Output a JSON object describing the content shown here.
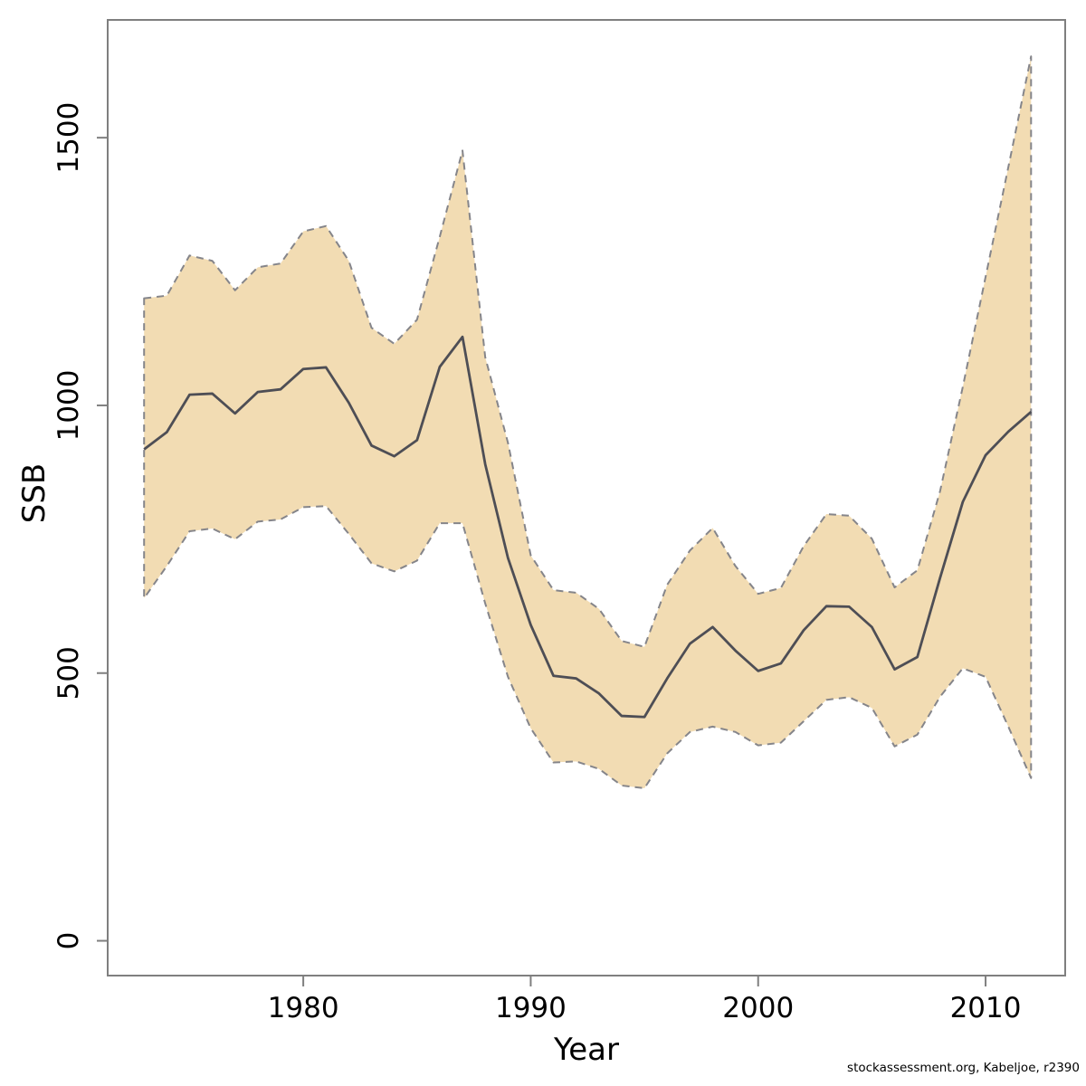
{
  "chart_data": {
    "type": "line",
    "title": "",
    "xlabel": "Year",
    "ylabel": "SSB",
    "legend": "none",
    "grid": false,
    "description": "SSB estimate with shaded confidence band (dashed borders)",
    "x": [
      1973,
      1974,
      1975,
      1976,
      1977,
      1978,
      1979,
      1980,
      1981,
      1982,
      1983,
      1984,
      1985,
      1986,
      1987,
      1988,
      1989,
      1990,
      1991,
      1992,
      1993,
      1994,
      1995,
      1996,
      1997,
      1998,
      1999,
      2000,
      2001,
      2002,
      2003,
      2004,
      2005,
      2006,
      2007,
      2008,
      2009,
      2010,
      2011,
      2012
    ],
    "series": [
      {
        "name": "SSB estimate",
        "style": "solid",
        "values": [
          918,
          950,
          1020,
          1022,
          985,
          1025,
          1030,
          1068,
          1071,
          1005,
          925,
          905,
          935,
          1072,
          1128,
          890,
          715,
          590,
          495,
          490,
          462,
          420,
          418,
          490,
          555,
          586,
          542,
          504,
          518,
          580,
          625,
          624,
          586,
          507,
          530,
          678,
          820,
          907,
          951,
          988
        ]
      },
      {
        "name": "lower confidence bound",
        "style": "dashed",
        "values": [
          640,
          700,
          765,
          770,
          750,
          783,
          787,
          810,
          812,
          760,
          705,
          690,
          710,
          780,
          780,
          630,
          493,
          397,
          333,
          335,
          321,
          290,
          285,
          350,
          390,
          400,
          390,
          365,
          370,
          410,
          450,
          455,
          435,
          363,
          385,
          456,
          509,
          493,
          400,
          304
        ]
      },
      {
        "name": "upper confidence bound",
        "style": "dashed",
        "values": [
          1200,
          1205,
          1280,
          1270,
          1215,
          1258,
          1265,
          1325,
          1335,
          1270,
          1145,
          1115,
          1160,
          1315,
          1476,
          1090,
          930,
          720,
          655,
          650,
          620,
          560,
          549,
          665,
          729,
          771,
          700,
          648,
          659,
          737,
          797,
          794,
          751,
          660,
          692,
          840,
          1035,
          1240,
          1445,
          1652
        ]
      }
    ],
    "x_ticks": [
      1980,
      1990,
      2000,
      2010
    ],
    "y_ticks": [
      0,
      500,
      1000,
      1500
    ],
    "xlim": [
      1971.4,
      2013.5
    ],
    "ylim": [
      -65,
      1720
    ],
    "colors": {
      "band_fill": "#f2dcb3",
      "band_border": "#85858a",
      "line": "#4e4e55",
      "axis": "#7f7f7f",
      "text": "#000000"
    }
  },
  "footer": {
    "text": "stockassessment.org, Kabeljoe, r2390"
  }
}
